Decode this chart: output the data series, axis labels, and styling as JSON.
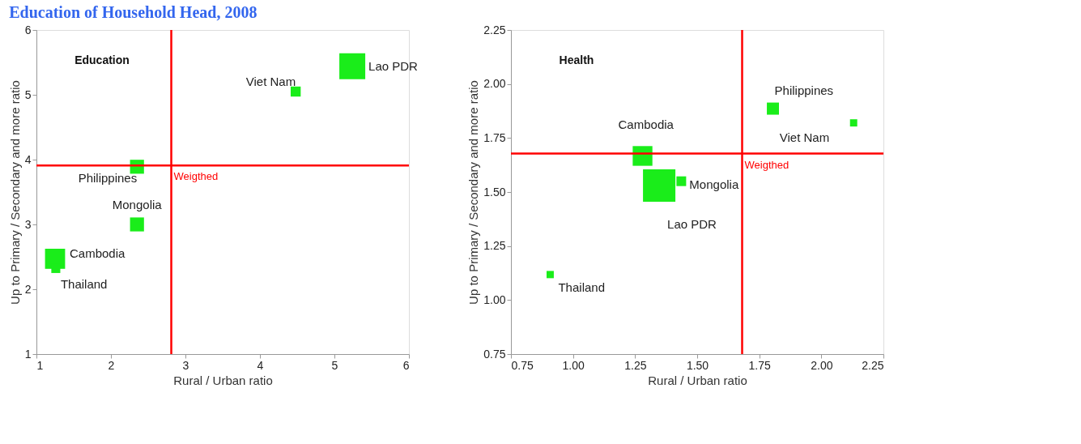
{
  "chart_data": [
    {
      "type": "bubble",
      "title": "Education of Household Head, 2008",
      "xlabel": "Rural / Urban ratio",
      "ylabel": "Up to Primary / Secondary and more ratio",
      "x": [
        5.24,
        4.48,
        2.35,
        2.35,
        1.25,
        1.26
      ],
      "series": [
        {
          "color": "#1aed1a",
          "values": [
            5.44,
            5.05,
            3.89,
            3.0,
            2.47,
            2.32
          ],
          "sizes": [
            1,
            0.15,
            0.29,
            0.29,
            0.6,
            0.12
          ]
        }
      ],
      "marker": "square",
      "xlim": [
        1,
        6
      ],
      "xticks": [
        1,
        2,
        3,
        4,
        5,
        6
      ],
      "ylim": [
        1,
        6
      ],
      "yticks": [
        1,
        2,
        3,
        4,
        5,
        6
      ],
      "ref_lines": [
        {
          "axis": "x",
          "value": 2.81,
          "label": "Weigthed",
          "color": "#ff0000"
        },
        {
          "axis": "y",
          "value": 3.91,
          "color": "#ff0000"
        }
      ],
      "annotations": [
        "Education",
        {
          "text": "Lao PDR",
          "x": 5.24,
          "y": 5.44
        },
        {
          "text": "Viet Nam",
          "x": 4.48,
          "y": 5.05
        },
        {
          "text": "Philippines",
          "x": 2.35,
          "y": 3.89
        },
        {
          "text": "Mongolia",
          "x": 2.35,
          "y": 3.0
        },
        {
          "text": "Cambodia",
          "x": 1.25,
          "y": 2.47
        },
        {
          "text": "Thailand",
          "x": 1.26,
          "y": 2.32
        }
      ],
      "grid": false
    },
    {
      "type": "bubble",
      "xlabel": "Rural / Urban ratio",
      "ylabel": "Up to Primary / Secondary and more ratio",
      "x": [
        1.805,
        2.13,
        1.28,
        1.347,
        1.436,
        0.908
      ],
      "series": [
        {
          "color": "#1aed1a",
          "values": [
            1.886,
            1.82,
            1.667,
            1.53,
            1.55,
            1.118
          ],
          "sizes": [
            0.14,
            0.05,
            0.37,
            1,
            0.09,
            0.05
          ]
        }
      ],
      "marker": "square",
      "xlim": [
        0.75,
        2.25
      ],
      "xticks": [
        {
          "value": 0.75,
          "label": "0.75"
        },
        {
          "value": 1.0,
          "label": "1.00"
        },
        {
          "value": 1.25,
          "label": "1.25"
        },
        {
          "value": 1.5,
          "label": "1.50"
        },
        {
          "value": 1.75,
          "label": "1.75"
        },
        {
          "value": 2.0,
          "label": "2.00"
        },
        {
          "value": 2.25,
          "label": "2.25"
        }
      ],
      "ylim": [
        0.75,
        2.25
      ],
      "yticks": [
        {
          "value": 0.75,
          "label": "0.75"
        },
        {
          "value": 1.0,
          "label": "1.00"
        },
        {
          "value": 1.25,
          "label": "1.25"
        },
        {
          "value": 1.5,
          "label": "1.50"
        },
        {
          "value": 1.75,
          "label": "1.75"
        },
        {
          "value": 2.0,
          "label": "2.00"
        },
        {
          "value": 2.25,
          "label": "2.25"
        }
      ],
      "ref_lines": [
        {
          "axis": "x",
          "value": 1.681,
          "label": "Weigthed",
          "color": "#ff0000"
        },
        {
          "axis": "y",
          "value": 1.678,
          "color": "#ff0000"
        }
      ],
      "annotations": [
        "Health",
        {
          "text": "Philippines",
          "x": 1.805,
          "y": 1.886
        },
        {
          "text": "Viet Nam",
          "x": 2.13,
          "y": 1.82
        },
        {
          "text": "Cambodia",
          "x": 1.28,
          "y": 1.667
        },
        {
          "text": "Lao PDR",
          "x": 1.347,
          "y": 1.53
        },
        {
          "text": "Mongolia",
          "x": 1.436,
          "y": 1.55
        },
        {
          "text": "Thailand",
          "x": 0.908,
          "y": 1.118
        }
      ],
      "grid": false
    }
  ]
}
